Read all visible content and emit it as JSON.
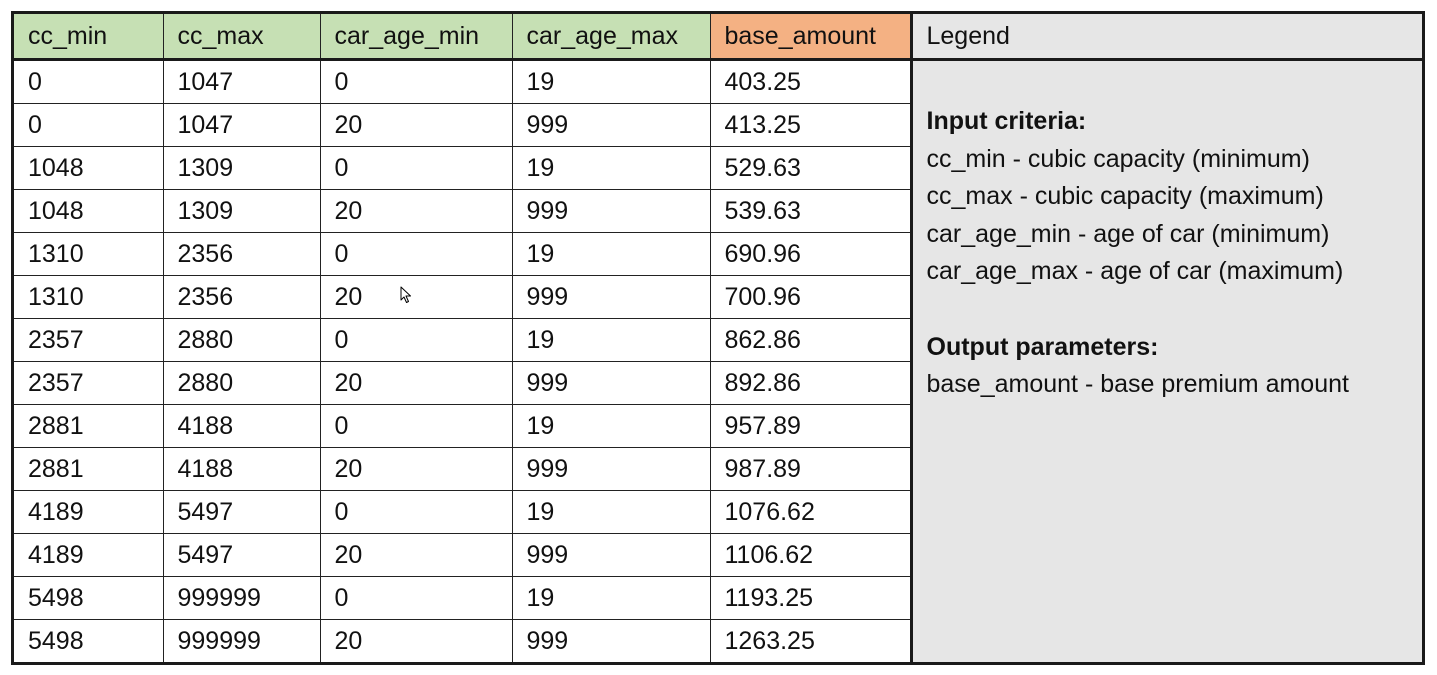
{
  "table": {
    "headers": [
      "cc_min",
      "cc_max",
      "car_age_min",
      "car_age_max",
      "base_amount"
    ],
    "rows": [
      [
        "0",
        "1047",
        "0",
        "19",
        "403.25"
      ],
      [
        "0",
        "1047",
        "20",
        "999",
        "413.25"
      ],
      [
        "1048",
        "1309",
        "0",
        "19",
        "529.63"
      ],
      [
        "1048",
        "1309",
        "20",
        "999",
        "539.63"
      ],
      [
        "1310",
        "2356",
        "0",
        "19",
        "690.96"
      ],
      [
        "1310",
        "2356",
        "20",
        "999",
        "700.96"
      ],
      [
        "2357",
        "2880",
        "0",
        "19",
        "862.86"
      ],
      [
        "2357",
        "2880",
        "20",
        "999",
        "892.86"
      ],
      [
        "2881",
        "4188",
        "0",
        "19",
        "957.89"
      ],
      [
        "2881",
        "4188",
        "20",
        "999",
        "987.89"
      ],
      [
        "4189",
        "5497",
        "0",
        "19",
        "1076.62"
      ],
      [
        "4189",
        "5497",
        "20",
        "999",
        "1106.62"
      ],
      [
        "5498",
        "999999",
        "0",
        "19",
        "1193.25"
      ],
      [
        "5498",
        "999999",
        "20",
        "999",
        "1263.25"
      ]
    ]
  },
  "legend": {
    "header": "Legend",
    "input_heading": "Input criteria:",
    "input_lines": [
      "cc_min - cubic capacity (minimum)",
      "cc_max - cubic capacity (maximum)",
      "car_age_min - age of car (minimum)",
      "car_age_max - age of car (maximum)"
    ],
    "output_heading": "Output parameters:",
    "output_lines": [
      "base_amount - base premium amount"
    ]
  },
  "colors": {
    "input_header": "#c6e0b4",
    "output_header": "#f4b183",
    "legend_background": "#e6e6e6"
  },
  "icons": {
    "cursor": "mouse-pointer-icon"
  }
}
